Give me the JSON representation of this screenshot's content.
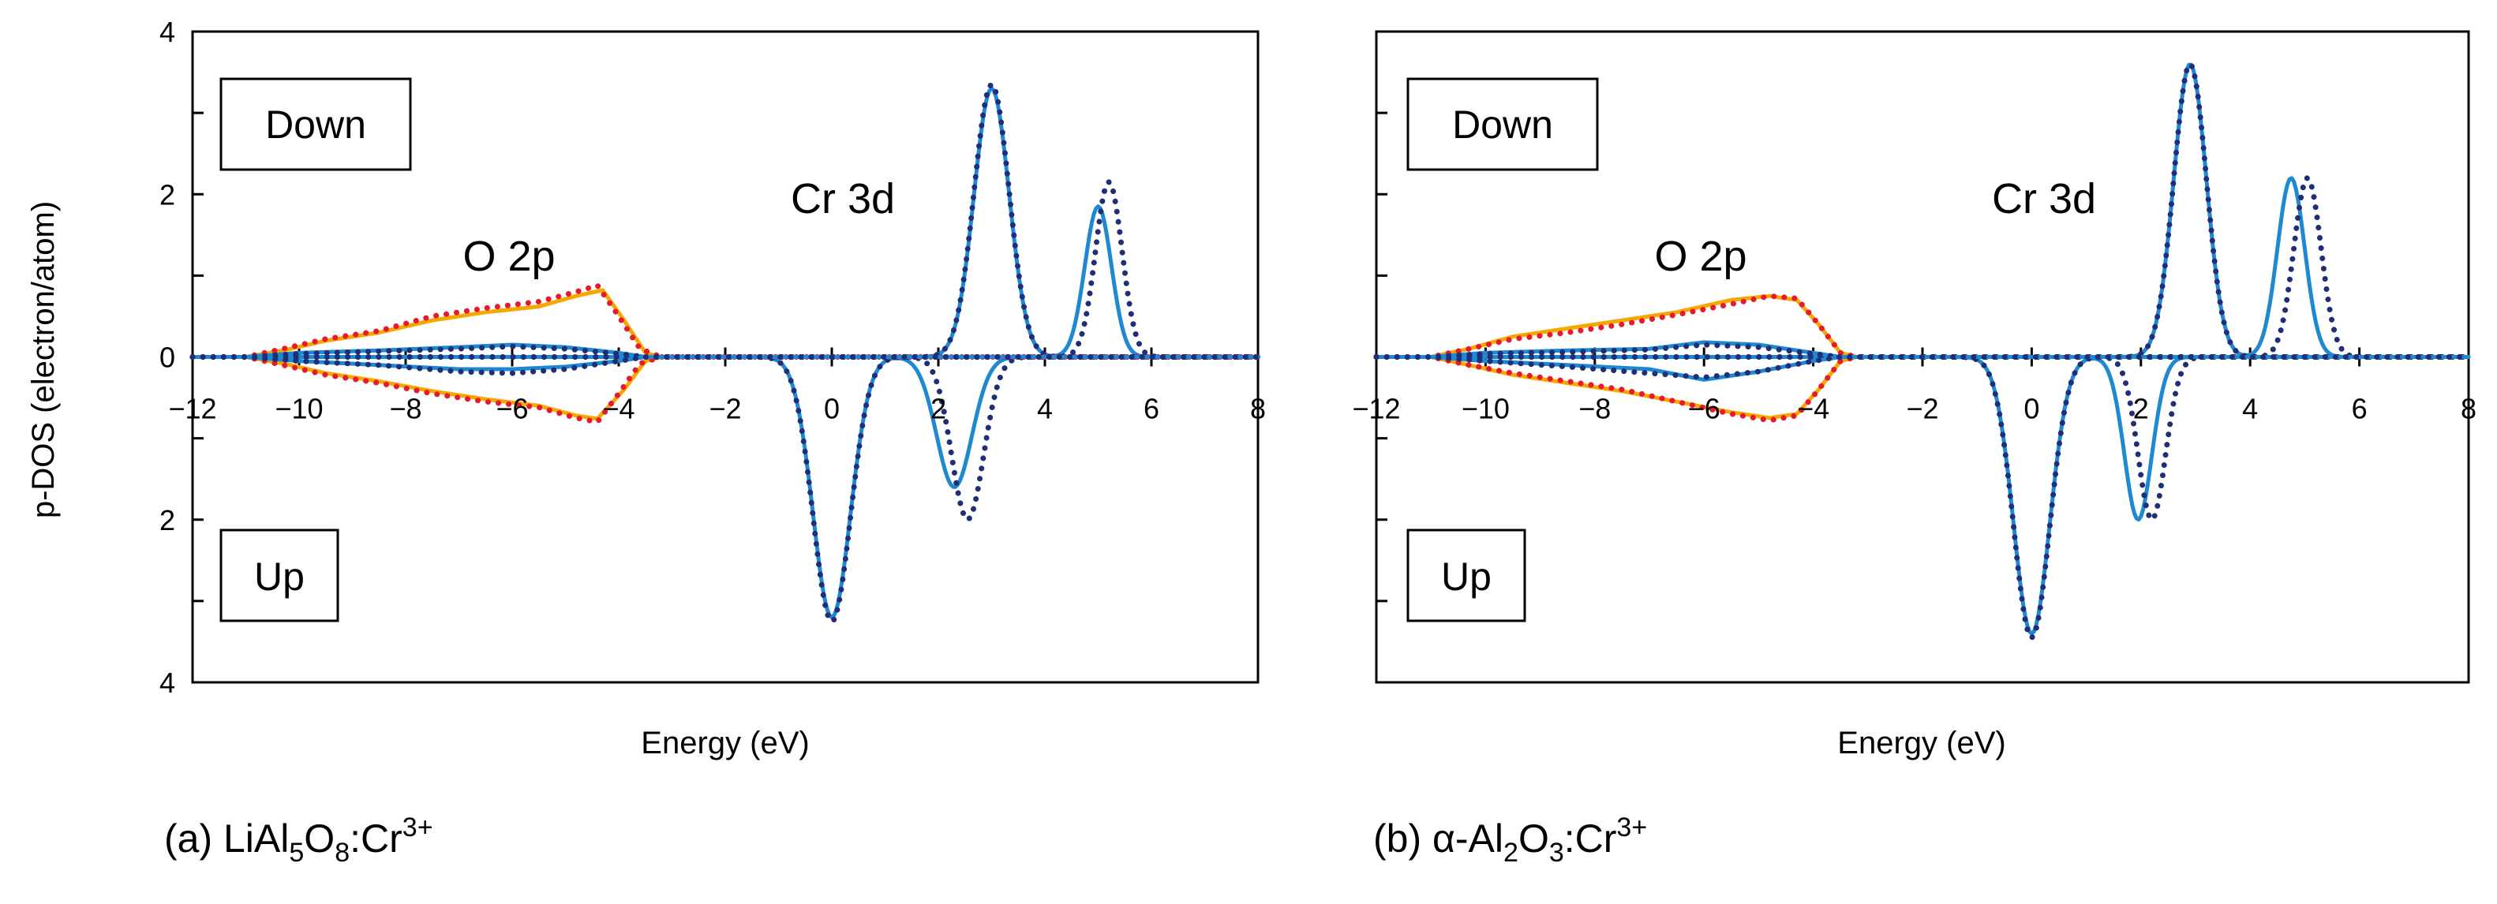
{
  "ylabel": "p-DOS (electron/atom)",
  "colors": {
    "cr_total": "#1F2E77",
    "cr_partial": "#1E88D0",
    "o_total": "#E8192C",
    "o_partial": "#F6A800"
  },
  "chart_data": [
    {
      "type": "line",
      "panel": "a",
      "caption": {
        "prefix": "(a) LiAl",
        "sub1": "5",
        "mid": "O",
        "sub2": "8",
        "mid2": ":Cr",
        "sup": "3+"
      },
      "xlabel": "Energy (eV)",
      "xlim": [
        -12,
        8
      ],
      "xticks": [
        -12,
        -10,
        -8,
        -6,
        -4,
        -2,
        0,
        2,
        4,
        6,
        8
      ],
      "xtick_labels": [
        "−12",
        "−10",
        "−8",
        "−6",
        "−4",
        "−2",
        "0",
        "2",
        "4",
        "6",
        "8"
      ],
      "ylim": [
        -4,
        4
      ],
      "yticks": [
        -4,
        -2,
        0,
        2,
        4
      ],
      "ytick_labels": [
        "4",
        "2",
        "0",
        "2",
        "4"
      ],
      "region_labels": {
        "down": "Down",
        "up": "Up"
      },
      "annotations": [
        {
          "text": "O 2p",
          "x": -5.6,
          "y": 1.2
        },
        {
          "text": "Cr 3d",
          "x": 0.4,
          "y": 1.85
        }
      ],
      "series": [
        {
          "name": "Cr 3d (solid)",
          "color_key": "cr_partial",
          "style": "solid",
          "spin": "down",
          "peaks": [
            {
              "center": 3.0,
              "height": 3.3,
              "width": 0.33
            },
            {
              "center": 5.0,
              "height": 1.85,
              "width": 0.25
            }
          ]
        },
        {
          "name": "Cr 3d (dotted)",
          "color_key": "cr_total",
          "style": "dotted",
          "spin": "down",
          "peaks": [
            {
              "center": 3.0,
              "height": 3.35,
              "width": 0.33
            },
            {
              "center": 5.2,
              "height": 2.15,
              "width": 0.25
            }
          ]
        },
        {
          "name": "Cr 3d (solid)",
          "color_key": "cr_partial",
          "style": "solid",
          "spin": "up",
          "peaks": [
            {
              "center": 0.0,
              "height": 3.2,
              "width": 0.35
            },
            {
              "center": 2.3,
              "height": 1.6,
              "width": 0.33
            }
          ]
        },
        {
          "name": "Cr 3d (dotted)",
          "color_key": "cr_total",
          "style": "dotted",
          "spin": "up",
          "peaks": [
            {
              "center": 0.0,
              "height": 3.25,
              "width": 0.35
            },
            {
              "center": 2.55,
              "height": 2.0,
              "width": 0.3
            }
          ]
        },
        {
          "name": "O 2p (solid)",
          "color_key": "o_partial",
          "style": "solid",
          "spin": "down",
          "points": [
            [
              -11,
              0
            ],
            [
              -10.3,
              0.08
            ],
            [
              -9.5,
              0.2
            ],
            [
              -8.5,
              0.3
            ],
            [
              -7.5,
              0.45
            ],
            [
              -6.5,
              0.55
            ],
            [
              -5.5,
              0.62
            ],
            [
              -4.8,
              0.75
            ],
            [
              -4.3,
              0.82
            ],
            [
              -3.9,
              0.45
            ],
            [
              -3.5,
              0.05
            ],
            [
              -3.2,
              0
            ]
          ]
        },
        {
          "name": "O 2p (dotted)",
          "color_key": "o_total",
          "style": "dotted",
          "spin": "down",
          "points": [
            [
              -11,
              0
            ],
            [
              -10.3,
              0.1
            ],
            [
              -9.5,
              0.22
            ],
            [
              -8.5,
              0.32
            ],
            [
              -7.5,
              0.5
            ],
            [
              -6.5,
              0.6
            ],
            [
              -5.5,
              0.68
            ],
            [
              -4.8,
              0.8
            ],
            [
              -4.4,
              0.88
            ],
            [
              -4.0,
              0.5
            ],
            [
              -3.6,
              0.1
            ],
            [
              -3.2,
              0
            ]
          ]
        },
        {
          "name": "O 2p (solid)",
          "color_key": "o_partial",
          "style": "solid",
          "spin": "up",
          "points": [
            [
              -11,
              0
            ],
            [
              -10.3,
              -0.08
            ],
            [
              -9.5,
              -0.2
            ],
            [
              -8.5,
              -0.3
            ],
            [
              -7.5,
              -0.42
            ],
            [
              -6.5,
              -0.52
            ],
            [
              -5.5,
              -0.6
            ],
            [
              -4.8,
              -0.72
            ],
            [
              -4.4,
              -0.76
            ],
            [
              -3.9,
              -0.4
            ],
            [
              -3.5,
              -0.05
            ],
            [
              -3.2,
              0
            ]
          ]
        },
        {
          "name": "O 2p (dotted)",
          "color_key": "o_total",
          "style": "dotted",
          "spin": "up",
          "points": [
            [
              -11,
              0
            ],
            [
              -10.3,
              -0.1
            ],
            [
              -9.5,
              -0.22
            ],
            [
              -8.5,
              -0.32
            ],
            [
              -7.5,
              -0.45
            ],
            [
              -6.5,
              -0.55
            ],
            [
              -5.5,
              -0.62
            ],
            [
              -4.8,
              -0.75
            ],
            [
              -4.4,
              -0.8
            ],
            [
              -4.0,
              -0.45
            ],
            [
              -3.6,
              -0.08
            ],
            [
              -3.2,
              0
            ]
          ]
        },
        {
          "name": "Cr 3d small (solid)",
          "color_key": "cr_partial",
          "style": "solid",
          "spin": "down",
          "points": [
            [
              -11,
              0
            ],
            [
              -10,
              0.05
            ],
            [
              -8.5,
              0.08
            ],
            [
              -7,
              0.12
            ],
            [
              -6,
              0.15
            ],
            [
              -5,
              0.12
            ],
            [
              -4,
              0.05
            ],
            [
              -3.5,
              0
            ]
          ]
        },
        {
          "name": "Cr 3d small (dotted)",
          "color_key": "cr_total",
          "style": "dotted",
          "spin": "down",
          "points": [
            [
              -11,
              0
            ],
            [
              -10,
              0.04
            ],
            [
              -8.5,
              0.07
            ],
            [
              -7,
              0.1
            ],
            [
              -6,
              0.13
            ],
            [
              -5,
              0.1
            ],
            [
              -4,
              0.04
            ],
            [
              -3.5,
              0
            ]
          ]
        },
        {
          "name": "Cr 3d small (solid)",
          "color_key": "cr_partial",
          "style": "solid",
          "spin": "up",
          "points": [
            [
              -11,
              0
            ],
            [
              -10,
              -0.05
            ],
            [
              -8.5,
              -0.1
            ],
            [
              -7,
              -0.15
            ],
            [
              -6,
              -0.15
            ],
            [
              -5,
              -0.12
            ],
            [
              -4,
              -0.05
            ],
            [
              -3.5,
              0
            ]
          ]
        },
        {
          "name": "Cr 3d small (dotted)",
          "color_key": "cr_total",
          "style": "dotted",
          "spin": "up",
          "points": [
            [
              -11,
              0
            ],
            [
              -10,
              -0.05
            ],
            [
              -8.5,
              -0.1
            ],
            [
              -7,
              -0.18
            ],
            [
              -6,
              -0.2
            ],
            [
              -5,
              -0.15
            ],
            [
              -4,
              -0.05
            ],
            [
              -3.5,
              0
            ]
          ]
        }
      ]
    },
    {
      "type": "line",
      "panel": "b",
      "caption": {
        "prefix": "(b) α-Al",
        "sub1": "2",
        "mid": "O",
        "sub2": "3",
        "mid2": ":Cr",
        "sup": "3+"
      },
      "xlabel": "Energy (eV)",
      "xlim": [
        -12,
        8
      ],
      "xticks": [
        -12,
        -10,
        -8,
        -6,
        -4,
        -2,
        0,
        2,
        4,
        6,
        8
      ],
      "xtick_labels": [
        "−12",
        "−10",
        "−8",
        "−6",
        "−4",
        "−2",
        "0",
        "2",
        "4",
        "6",
        "8"
      ],
      "ylim": [
        -4,
        4
      ],
      "yticks": [
        -4,
        -2,
        0,
        2,
        4
      ],
      "ytick_labels": [
        "",
        "",
        "",
        "",
        ""
      ],
      "region_labels": {
        "down": "Down",
        "up": "Up"
      },
      "annotations": [
        {
          "text": "O 2p",
          "x": -5.6,
          "y": 1.2
        },
        {
          "text": "Cr 3d",
          "x": 0.4,
          "y": 1.85
        }
      ],
      "series": [
        {
          "name": "Cr 3d (solid)",
          "color_key": "cr_partial",
          "style": "solid",
          "spin": "down",
          "peaks": [
            {
              "center": 2.9,
              "height": 3.6,
              "width": 0.3
            },
            {
              "center": 4.75,
              "height": 2.2,
              "width": 0.25
            }
          ]
        },
        {
          "name": "Cr 3d (dotted)",
          "color_key": "cr_total",
          "style": "dotted",
          "spin": "down",
          "peaks": [
            {
              "center": 2.9,
              "height": 3.6,
              "width": 0.3
            },
            {
              "center": 5.05,
              "height": 2.2,
              "width": 0.25
            }
          ]
        },
        {
          "name": "Cr 3d (solid)",
          "color_key": "cr_partial",
          "style": "solid",
          "spin": "up",
          "peaks": [
            {
              "center": 0.0,
              "height": 3.4,
              "width": 0.33
            },
            {
              "center": 1.95,
              "height": 2.0,
              "width": 0.25
            }
          ]
        },
        {
          "name": "Cr 3d (dotted)",
          "color_key": "cr_total",
          "style": "dotted",
          "spin": "up",
          "peaks": [
            {
              "center": 0.0,
              "height": 3.45,
              "width": 0.33
            },
            {
              "center": 2.2,
              "height": 2.0,
              "width": 0.25
            }
          ]
        },
        {
          "name": "O 2p (solid)",
          "color_key": "o_partial",
          "style": "solid",
          "spin": "down",
          "points": [
            [
              -11,
              0
            ],
            [
              -10.3,
              0.1
            ],
            [
              -9.5,
              0.25
            ],
            [
              -8.5,
              0.35
            ],
            [
              -7.5,
              0.45
            ],
            [
              -6.5,
              0.55
            ],
            [
              -5.5,
              0.7
            ],
            [
              -4.8,
              0.75
            ],
            [
              -4.3,
              0.7
            ],
            [
              -3.9,
              0.4
            ],
            [
              -3.5,
              0.05
            ],
            [
              -3.2,
              0
            ]
          ]
        },
        {
          "name": "O 2p (dotted)",
          "color_key": "o_total",
          "style": "dotted",
          "spin": "down",
          "points": [
            [
              -11,
              0
            ],
            [
              -10.3,
              0.1
            ],
            [
              -9.5,
              0.22
            ],
            [
              -8.5,
              0.3
            ],
            [
              -7.5,
              0.4
            ],
            [
              -6.5,
              0.52
            ],
            [
              -5.5,
              0.65
            ],
            [
              -4.8,
              0.75
            ],
            [
              -4.3,
              0.72
            ],
            [
              -3.9,
              0.4
            ],
            [
              -3.5,
              0.05
            ],
            [
              -3.2,
              0
            ]
          ]
        },
        {
          "name": "O 2p (solid)",
          "color_key": "o_partial",
          "style": "solid",
          "spin": "up",
          "points": [
            [
              -11,
              0
            ],
            [
              -10.3,
              -0.1
            ],
            [
              -9.5,
              -0.22
            ],
            [
              -8.5,
              -0.32
            ],
            [
              -7.5,
              -0.42
            ],
            [
              -6.5,
              -0.55
            ],
            [
              -5.5,
              -0.68
            ],
            [
              -4.8,
              -0.75
            ],
            [
              -4.3,
              -0.7
            ],
            [
              -3.9,
              -0.4
            ],
            [
              -3.5,
              -0.05
            ],
            [
              -3.2,
              0
            ]
          ]
        },
        {
          "name": "O 2p (dotted)",
          "color_key": "o_total",
          "style": "dotted",
          "spin": "up",
          "points": [
            [
              -11,
              0
            ],
            [
              -10.3,
              -0.1
            ],
            [
              -9.5,
              -0.2
            ],
            [
              -8.5,
              -0.3
            ],
            [
              -7.5,
              -0.4
            ],
            [
              -6.5,
              -0.55
            ],
            [
              -5.5,
              -0.7
            ],
            [
              -4.8,
              -0.78
            ],
            [
              -4.3,
              -0.72
            ],
            [
              -3.9,
              -0.4
            ],
            [
              -3.5,
              -0.05
            ],
            [
              -3.2,
              0
            ]
          ]
        },
        {
          "name": "Cr 3d small (solid)",
          "color_key": "cr_partial",
          "style": "solid",
          "spin": "down",
          "points": [
            [
              -11,
              0
            ],
            [
              -10,
              0.05
            ],
            [
              -8.5,
              0.08
            ],
            [
              -7,
              0.1
            ],
            [
              -6,
              0.18
            ],
            [
              -5,
              0.15
            ],
            [
              -4,
              0.05
            ],
            [
              -3.5,
              0
            ]
          ]
        },
        {
          "name": "Cr 3d small (dotted)",
          "color_key": "cr_total",
          "style": "dotted",
          "spin": "down",
          "points": [
            [
              -11,
              0
            ],
            [
              -10,
              0.04
            ],
            [
              -8.5,
              0.06
            ],
            [
              -7,
              0.09
            ],
            [
              -6,
              0.15
            ],
            [
              -5,
              0.12
            ],
            [
              -4,
              0.04
            ],
            [
              -3.5,
              0
            ]
          ]
        },
        {
          "name": "Cr 3d small (solid)",
          "color_key": "cr_partial",
          "style": "solid",
          "spin": "up",
          "points": [
            [
              -11,
              0
            ],
            [
              -10,
              -0.05
            ],
            [
              -8.5,
              -0.1
            ],
            [
              -7,
              -0.15
            ],
            [
              -6,
              -0.28
            ],
            [
              -5,
              -0.18
            ],
            [
              -4,
              -0.05
            ],
            [
              -3.5,
              0
            ]
          ]
        },
        {
          "name": "Cr 3d small (dotted)",
          "color_key": "cr_total",
          "style": "dotted",
          "spin": "up",
          "points": [
            [
              -11,
              0
            ],
            [
              -10,
              -0.05
            ],
            [
              -8.5,
              -0.12
            ],
            [
              -7,
              -0.2
            ],
            [
              -6,
              -0.25
            ],
            [
              -5,
              -0.18
            ],
            [
              -4,
              -0.05
            ],
            [
              -3.5,
              0
            ]
          ]
        }
      ]
    }
  ]
}
